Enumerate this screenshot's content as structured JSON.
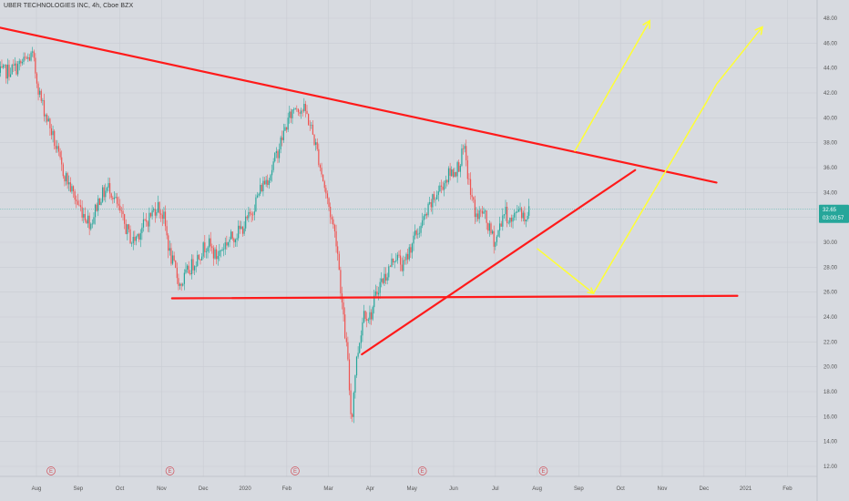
{
  "header": {
    "title": "UBER TECHNOLOGIES INC, 4h, Cboe BZX"
  },
  "colors": {
    "background": "#d7dae0",
    "grid": "#c9ccd3",
    "up": "#26a69a",
    "down": "#ef5350",
    "trendline": "#ff1a1a",
    "projection": "#ffff33",
    "price_tag": "#26a69a",
    "earnings": "#d0505a"
  },
  "chart_data": {
    "type": "candlestick",
    "symbol": "UBER TECHNOLOGIES INC",
    "interval": "4h",
    "exchange": "Cboe BZX",
    "ylim": [
      11,
      49
    ],
    "y_ticks": [
      "12.00",
      "14.00",
      "16.00",
      "18.00",
      "20.00",
      "22.00",
      "24.00",
      "26.00",
      "28.00",
      "30.00",
      "32.00",
      "34.00",
      "36.00",
      "38.00",
      "40.00",
      "42.00",
      "44.00",
      "46.00",
      "48.00"
    ],
    "x_ticks": [
      {
        "label": "Aug",
        "m": 0
      },
      {
        "label": "Sep",
        "m": 1
      },
      {
        "label": "Oct",
        "m": 2
      },
      {
        "label": "Nov",
        "m": 3
      },
      {
        "label": "Dec",
        "m": 4
      },
      {
        "label": "2020",
        "m": 5
      },
      {
        "label": "Feb",
        "m": 6
      },
      {
        "label": "Mar",
        "m": 7
      },
      {
        "label": "Apr",
        "m": 8
      },
      {
        "label": "May",
        "m": 9
      },
      {
        "label": "Jun",
        "m": 10
      },
      {
        "label": "Jul",
        "m": 11
      },
      {
        "label": "Aug",
        "m": 12
      },
      {
        "label": "Sep",
        "m": 13
      },
      {
        "label": "Oct",
        "m": 14
      },
      {
        "label": "Nov",
        "m": 15
      },
      {
        "label": "Dec",
        "m": 16
      },
      {
        "label": "2021",
        "m": 17
      },
      {
        "label": "Feb",
        "m": 18
      }
    ],
    "last_price": {
      "value": 32.65,
      "label": "32.65",
      "countdown": "03:00:57"
    },
    "earnings_marker": "E",
    "earnings_at_m": [
      0.35,
      3.2,
      6.2,
      9.25,
      12.15
    ],
    "price_path": [
      [
        -0.9,
        43.5
      ],
      [
        -0.5,
        44.0
      ],
      [
        -0.1,
        45.0
      ],
      [
        0.1,
        41.5
      ],
      [
        0.25,
        40.0
      ],
      [
        0.35,
        39.0
      ],
      [
        0.6,
        36.0
      ],
      [
        0.8,
        34.5
      ],
      [
        1.0,
        33.0
      ],
      [
        1.3,
        31.5
      ],
      [
        1.5,
        33.5
      ],
      [
        1.75,
        34.5
      ],
      [
        2.1,
        31.5
      ],
      [
        2.3,
        30.0
      ],
      [
        2.6,
        31.5
      ],
      [
        2.9,
        33.0
      ],
      [
        3.05,
        32.0
      ],
      [
        3.2,
        29.0
      ],
      [
        3.45,
        26.5
      ],
      [
        3.6,
        27.5
      ],
      [
        3.9,
        29.0
      ],
      [
        4.1,
        30.0
      ],
      [
        4.3,
        28.8
      ],
      [
        4.55,
        30.0
      ],
      [
        4.9,
        31.0
      ],
      [
        5.1,
        32.0
      ],
      [
        5.4,
        34.5
      ],
      [
        5.6,
        35.5
      ],
      [
        5.8,
        37.5
      ],
      [
        6.0,
        39.5
      ],
      [
        6.2,
        41.0
      ],
      [
        6.45,
        40.5
      ],
      [
        6.6,
        39.0
      ],
      [
        6.75,
        37.0
      ],
      [
        6.9,
        34.5
      ],
      [
        7.0,
        33.0
      ],
      [
        7.2,
        30.0
      ],
      [
        7.35,
        24.0
      ],
      [
        7.45,
        21.0
      ],
      [
        7.55,
        15.5
      ],
      [
        7.65,
        20.0
      ],
      [
        7.85,
        24.5
      ],
      [
        8.0,
        24.0
      ],
      [
        8.2,
        26.5
      ],
      [
        8.4,
        27.5
      ],
      [
        8.6,
        29.0
      ],
      [
        8.8,
        28.0
      ],
      [
        9.0,
        30.0
      ],
      [
        9.25,
        31.5
      ],
      [
        9.45,
        33.0
      ],
      [
        9.7,
        34.5
      ],
      [
        9.9,
        35.5
      ],
      [
        10.1,
        36.0
      ],
      [
        10.25,
        37.5
      ],
      [
        10.4,
        34.0
      ],
      [
        10.55,
        32.0
      ],
      [
        10.7,
        32.5
      ],
      [
        10.85,
        31.0
      ],
      [
        11.0,
        30.0
      ],
      [
        11.2,
        32.5
      ],
      [
        11.4,
        31.5
      ],
      [
        11.55,
        33.0
      ],
      [
        11.7,
        32.0
      ],
      [
        11.82,
        32.6
      ]
    ],
    "annotations": {
      "lines": [
        {
          "color": "trendline",
          "width": 2.2,
          "from": [
            -0.95,
            47.3
          ],
          "to": [
            16.3,
            34.8
          ]
        },
        {
          "color": "trendline",
          "width": 2.2,
          "from": [
            3.25,
            25.5
          ],
          "to": [
            16.8,
            25.7
          ]
        },
        {
          "color": "trendline",
          "width": 2.2,
          "from": [
            7.8,
            21.0
          ],
          "to": [
            14.35,
            35.8
          ]
        }
      ],
      "arrows": [
        {
          "color": "projection",
          "width": 1.5,
          "points": [
            [
              12.9,
              37.3
            ],
            [
              14.7,
              47.8
            ]
          ]
        },
        {
          "color": "projection",
          "width": 1.5,
          "points": [
            [
              12.0,
              29.5
            ],
            [
              13.35,
              25.9
            ],
            [
              16.05,
              41.2
            ],
            [
              16.3,
              42.7
            ],
            [
              17.4,
              47.3
            ]
          ]
        }
      ]
    }
  }
}
